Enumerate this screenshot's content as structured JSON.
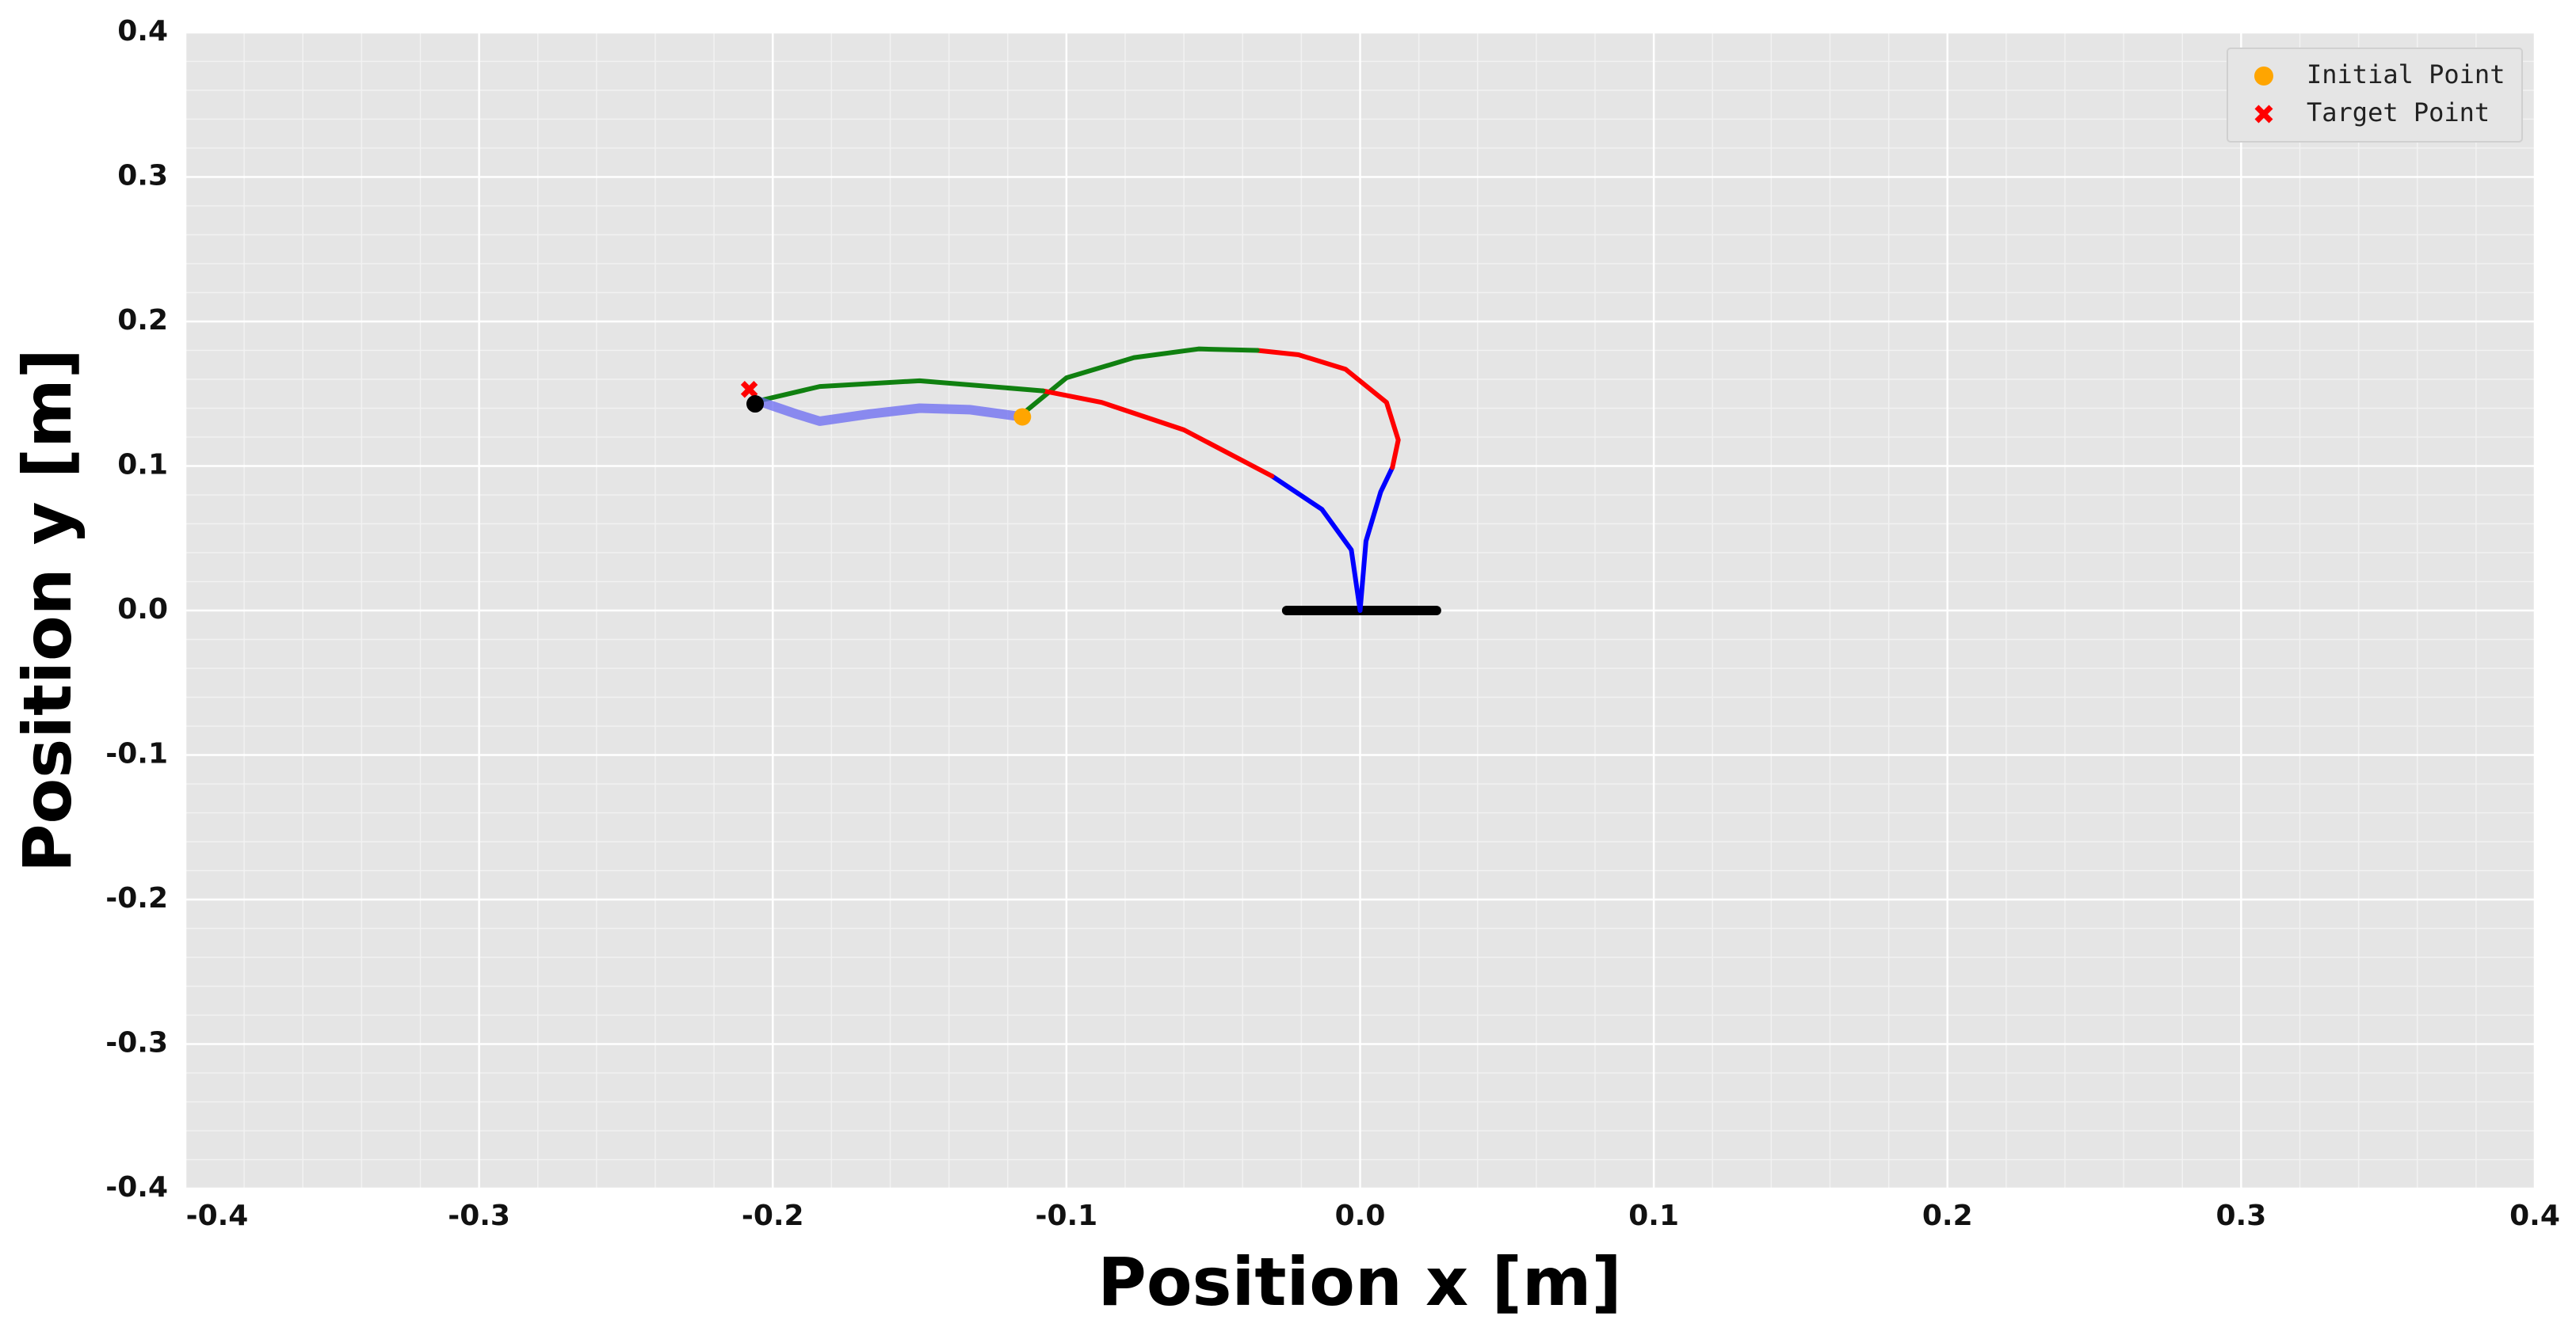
{
  "chart_data": {
    "type": "line",
    "xlabel": "Position x [m]",
    "ylabel": "Position y [m]",
    "xlim": [
      -0.4,
      0.4
    ],
    "ylim": [
      -0.4,
      0.4
    ],
    "xticks": [
      -0.4,
      -0.3,
      -0.2,
      -0.1,
      {
        "value": 0,
        "label": "0.0"
      },
      0.1,
      0.2,
      0.3,
      0.4
    ],
    "yticks": [
      -0.4,
      -0.3,
      -0.2,
      -0.1,
      {
        "value": 0,
        "label": "0.0"
      },
      0.1,
      0.2,
      0.3,
      0.4
    ],
    "grid": true,
    "minor_grid": true,
    "legend": "upper right",
    "series": [
      {
        "color": "#000000",
        "linewidth": 3,
        "x": [
          -0.025,
          0.026
        ],
        "y": [
          0,
          0
        ]
      },
      {
        "color": "#0000ff",
        "linewidth": 1.5,
        "x": [
          0,
          0.002,
          0.007,
          0.011
        ],
        "y": [
          0,
          0.048,
          0.082,
          0.099
        ]
      },
      {
        "color": "#ff0000",
        "linewidth": 1.5,
        "x": [
          0.011,
          0.013,
          0.009,
          -0.005,
          -0.021,
          -0.035
        ],
        "y": [
          0.099,
          0.118,
          0.144,
          0.167,
          0.177,
          0.18
        ]
      },
      {
        "color": "#108010",
        "linewidth": 1.5,
        "x": [
          -0.035,
          -0.055,
          -0.077,
          -0.1,
          -0.115
        ],
        "y": [
          0.18,
          0.181,
          0.175,
          0.161,
          0.136
        ]
      },
      {
        "color": "#0000ff",
        "linewidth": 1.5,
        "x": [
          0,
          -0.003,
          -0.013,
          -0.03
        ],
        "y": [
          0,
          0.042,
          0.07,
          0.093
        ]
      },
      {
        "color": "#ff0000",
        "linewidth": 1.5,
        "x": [
          -0.03,
          -0.06,
          -0.088,
          -0.108
        ],
        "y": [
          0.093,
          0.125,
          0.144,
          0.152
        ]
      },
      {
        "color": "#108010",
        "linewidth": 1.5,
        "x": [
          -0.108,
          -0.15,
          -0.184,
          -0.205
        ],
        "y": [
          0.152,
          0.159,
          0.155,
          0.145
        ]
      },
      {
        "color": "#6a6af2",
        "linewidth": 3,
        "x": [
          -0.115,
          -0.133,
          -0.15,
          -0.167,
          -0.184,
          -0.192,
          -0.205
        ],
        "y": [
          0.134,
          0.139,
          0.14,
          0.136,
          0.131,
          0.136,
          0.145
        ]
      },
      {
        "name": "Initial Point",
        "color": "#ffa500",
        "marker": "o",
        "x": [
          -0.115
        ],
        "y": [
          0.134
        ]
      },
      {
        "name": "Target Point",
        "color": "#ff0000",
        "marker": "x",
        "x": [
          -0.208
        ],
        "y": [
          0.153
        ]
      },
      {
        "color": "#000000",
        "marker": "o",
        "x": [
          -0.206
        ],
        "y": [
          0.143
        ]
      }
    ]
  }
}
